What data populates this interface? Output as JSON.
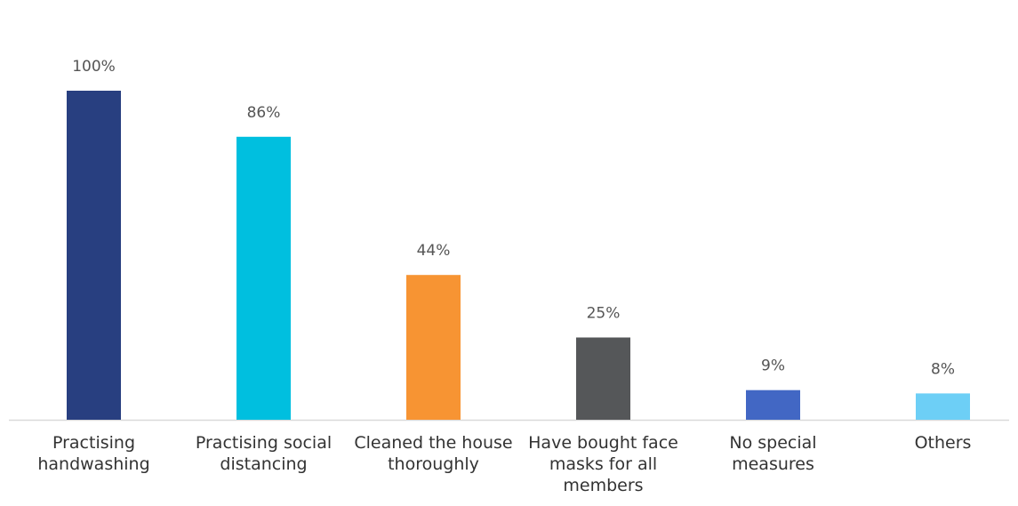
{
  "chart_data": {
    "type": "bar",
    "categories": [
      "Practising handwashing",
      "Practising social distancing",
      "Cleaned the house thoroughly",
      "Have bought face masks for all members",
      "No special measures",
      "Others"
    ],
    "values": [
      100,
      86,
      44,
      25,
      9,
      8
    ],
    "value_labels": [
      "100%",
      "86%",
      "44%",
      "25%",
      "9%",
      "8%"
    ],
    "colors": [
      "#283f80",
      "#00bfdf",
      "#f79433",
      "#555759",
      "#4267c4",
      "#6dcff6"
    ]
  }
}
